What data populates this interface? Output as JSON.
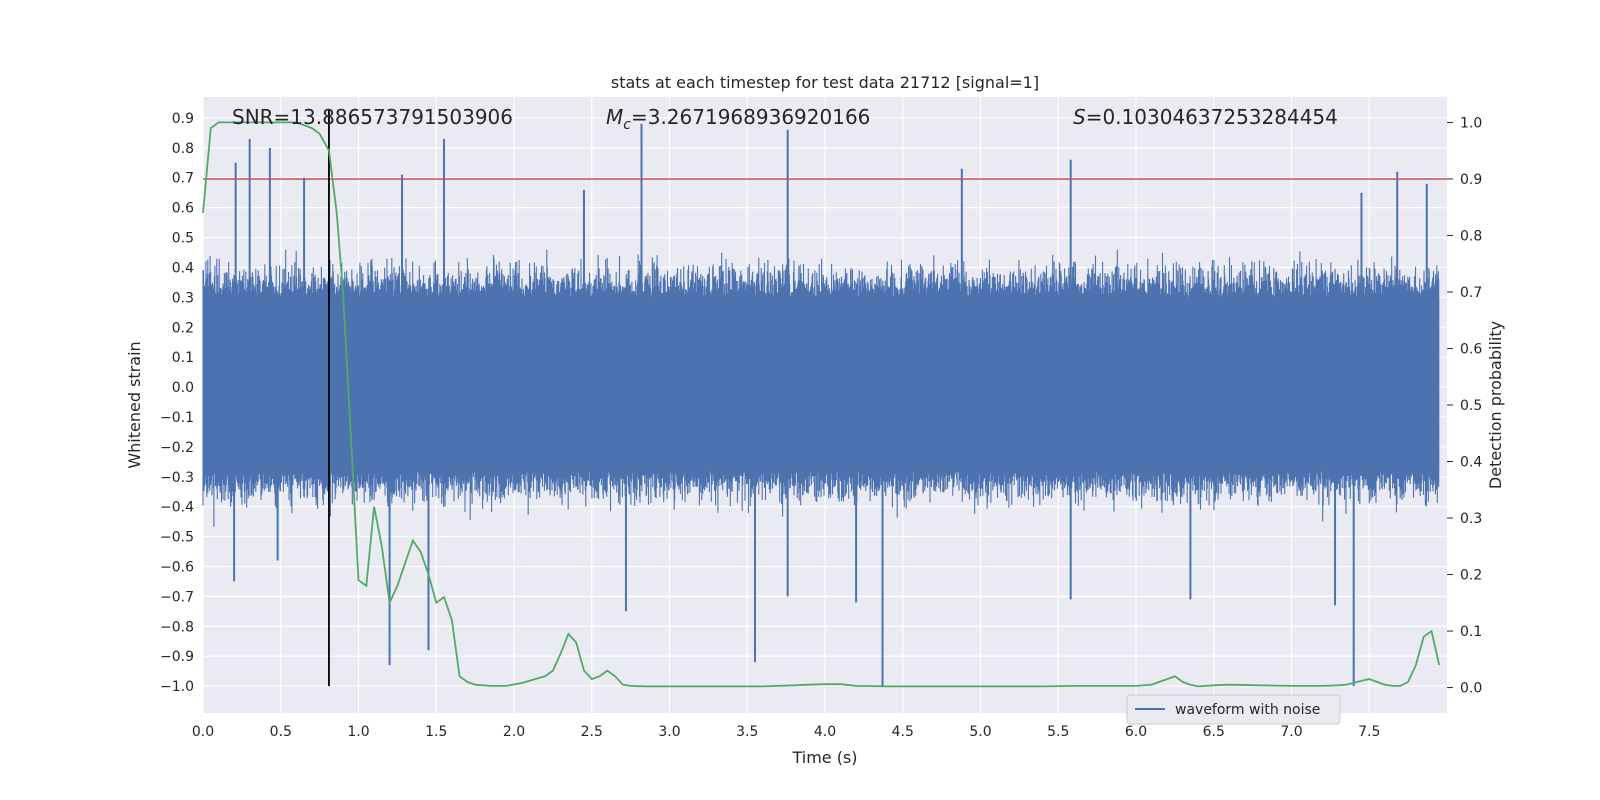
{
  "chart_data": {
    "type": "line",
    "title": "stats at each timestep for test data 21712 [signal=1]",
    "xlabel": "Time (s)",
    "ylabel": "Whitened strain",
    "y2label": "Detection probability",
    "xlim": [
      0.0,
      8.0
    ],
    "ylim": [
      -1.09,
      0.97
    ],
    "y2lim": [
      -0.045,
      1.045
    ],
    "x_ticks": [
      "0.0",
      "0.5",
      "1.0",
      "1.5",
      "2.0",
      "2.5",
      "3.0",
      "3.5",
      "4.0",
      "4.5",
      "5.0",
      "5.5",
      "6.0",
      "6.5",
      "7.0",
      "7.5"
    ],
    "x_tick_values": [
      0.0,
      0.5,
      1.0,
      1.5,
      2.0,
      2.5,
      3.0,
      3.5,
      4.0,
      4.5,
      5.0,
      5.5,
      6.0,
      6.5,
      7.0,
      7.5
    ],
    "y_ticks": [
      "−1.0",
      "−0.9",
      "−0.8",
      "−0.7",
      "−0.6",
      "−0.5",
      "−0.4",
      "−0.3",
      "−0.2",
      "−0.1",
      "0.0",
      "0.1",
      "0.2",
      "0.3",
      "0.4",
      "0.5",
      "0.6",
      "0.7",
      "0.8",
      "0.9"
    ],
    "y_tick_values": [
      -1.0,
      -0.9,
      -0.8,
      -0.7,
      -0.6,
      -0.5,
      -0.4,
      -0.3,
      -0.2,
      -0.1,
      0.0,
      0.1,
      0.2,
      0.3,
      0.4,
      0.5,
      0.6,
      0.7,
      0.8,
      0.9
    ],
    "y2_ticks": [
      "0.0",
      "0.1",
      "0.2",
      "0.3",
      "0.4",
      "0.5",
      "0.6",
      "0.7",
      "0.8",
      "0.9",
      "1.0"
    ],
    "y2_tick_values": [
      0.0,
      0.1,
      0.2,
      0.3,
      0.4,
      0.5,
      0.6,
      0.7,
      0.8,
      0.9,
      1.0
    ],
    "annotations": {
      "snr": "SNR=13.886573791503906",
      "mc_symbol": "M",
      "mc_sub": "c",
      "mc_value": "=3.2671968936920166",
      "s_symbol": "S",
      "s_value": "=0.10304637253284454"
    },
    "threshold": {
      "axis": "y2",
      "value": 0.9,
      "color": "#c44e52"
    },
    "marker_time": 0.81,
    "series": [
      {
        "name": "waveform with noise",
        "axis": "y",
        "color": "#4c72b0",
        "kind": "noise",
        "typical_range": [
          -0.42,
          0.45
        ],
        "spikes": [
          {
            "x": 0.3,
            "y": 0.83
          },
          {
            "x": 0.21,
            "y": 0.75
          },
          {
            "x": 0.43,
            "y": 0.8
          },
          {
            "x": 0.65,
            "y": 0.7
          },
          {
            "x": 0.2,
            "y": -0.65
          },
          {
            "x": 0.48,
            "y": -0.58
          },
          {
            "x": 1.28,
            "y": 0.71
          },
          {
            "x": 1.55,
            "y": 0.83
          },
          {
            "x": 1.2,
            "y": -0.93
          },
          {
            "x": 1.45,
            "y": -0.88
          },
          {
            "x": 2.45,
            "y": 0.66
          },
          {
            "x": 2.82,
            "y": 0.88
          },
          {
            "x": 2.72,
            "y": -0.75
          },
          {
            "x": 3.55,
            "y": -0.92
          },
          {
            "x": 3.76,
            "y": 0.86
          },
          {
            "x": 3.76,
            "y": -0.7
          },
          {
            "x": 4.37,
            "y": -1.0
          },
          {
            "x": 4.2,
            "y": -0.72
          },
          {
            "x": 4.88,
            "y": 0.73
          },
          {
            "x": 5.58,
            "y": 0.76
          },
          {
            "x": 5.58,
            "y": -0.71
          },
          {
            "x": 6.35,
            "y": -0.71
          },
          {
            "x": 7.28,
            "y": -0.73
          },
          {
            "x": 7.4,
            "y": -1.0
          },
          {
            "x": 7.45,
            "y": 0.65
          },
          {
            "x": 7.68,
            "y": 0.72
          },
          {
            "x": 7.87,
            "y": 0.68
          }
        ]
      },
      {
        "name": "detection probability",
        "axis": "y2",
        "color": "#55a868",
        "x": [
          0.0,
          0.05,
          0.1,
          0.2,
          0.3,
          0.4,
          0.5,
          0.6,
          0.7,
          0.75,
          0.81,
          0.86,
          0.9,
          0.95,
          1.0,
          1.05,
          1.1,
          1.15,
          1.2,
          1.25,
          1.3,
          1.35,
          1.4,
          1.45,
          1.5,
          1.55,
          1.6,
          1.65,
          1.7,
          1.75,
          1.85,
          1.95,
          2.05,
          2.2,
          2.25,
          2.3,
          2.35,
          2.4,
          2.45,
          2.5,
          2.55,
          2.6,
          2.65,
          2.7,
          2.75,
          2.85,
          3.0,
          3.2,
          3.4,
          3.6,
          3.8,
          3.9,
          4.0,
          4.1,
          4.2,
          4.4,
          4.6,
          4.8,
          5.0,
          5.2,
          5.4,
          5.6,
          5.8,
          6.0,
          6.1,
          6.15,
          6.2,
          6.25,
          6.3,
          6.35,
          6.4,
          6.5,
          6.6,
          6.8,
          7.0,
          7.2,
          7.3,
          7.35,
          7.4,
          7.45,
          7.5,
          7.55,
          7.6,
          7.65,
          7.7,
          7.75,
          7.8,
          7.85,
          7.9,
          7.95
        ],
        "values": [
          0.84,
          0.99,
          1.0,
          1.0,
          1.0,
          1.0,
          1.0,
          1.0,
          0.99,
          0.98,
          0.95,
          0.84,
          0.7,
          0.45,
          0.19,
          0.18,
          0.32,
          0.25,
          0.15,
          0.18,
          0.22,
          0.26,
          0.24,
          0.2,
          0.15,
          0.16,
          0.12,
          0.02,
          0.01,
          0.005,
          0.003,
          0.003,
          0.008,
          0.02,
          0.03,
          0.06,
          0.095,
          0.08,
          0.03,
          0.015,
          0.02,
          0.03,
          0.02,
          0.005,
          0.003,
          0.002,
          0.002,
          0.002,
          0.002,
          0.002,
          0.004,
          0.005,
          0.006,
          0.006,
          0.003,
          0.002,
          0.002,
          0.002,
          0.002,
          0.002,
          0.002,
          0.003,
          0.003,
          0.003,
          0.005,
          0.01,
          0.015,
          0.02,
          0.01,
          0.005,
          0.002,
          0.004,
          0.005,
          0.004,
          0.003,
          0.003,
          0.004,
          0.005,
          0.008,
          0.012,
          0.015,
          0.01,
          0.005,
          0.003,
          0.003,
          0.01,
          0.04,
          0.09,
          0.1,
          0.04
        ]
      }
    ],
    "legend": {
      "entries": [
        "waveform with noise"
      ],
      "location": "lower-right"
    }
  }
}
